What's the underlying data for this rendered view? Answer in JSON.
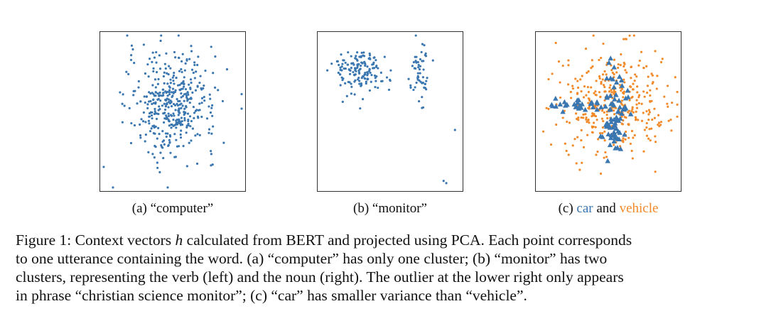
{
  "colors": {
    "blue": "#3a76b0",
    "orange": "#f28a2a"
  },
  "subcaptions": {
    "a": "(a) “computer”",
    "b": "(b) “monitor”",
    "c_prefix": "(c) ",
    "c_word1": "car",
    "c_mid": " and ",
    "c_word2": "vehicle"
  },
  "caption": {
    "line1_pre": "Figure 1: Context vectors ",
    "line1_var": "h",
    "line1_post": " calculated from BERT and projected using PCA. Each point corresponds",
    "line2": "to one utterance containing the word. (a) “computer” has only one cluster; (b) “monitor” has two",
    "line3": "clusters, representing the verb (left) and the noun (right). The outlier at the lower right only appears",
    "line4": "in phrase “christian science monitor”; (c) “car” has smaller variance than “vehicle”."
  },
  "chart_data": [
    {
      "type": "scatter",
      "title": "(a) “computer”",
      "xlabel": "",
      "ylabel": "",
      "xlim": [
        -1,
        1
      ],
      "ylim": [
        -1,
        1
      ],
      "series": [
        {
          "marker": "dot",
          "color": "#3a76b0",
          "clusters": [
            {
              "cx": 0.0,
              "cy": 0.1,
              "sx": 0.33,
              "sy": 0.35,
              "n": 430
            }
          ]
        }
      ]
    },
    {
      "type": "scatter",
      "title": "(b) “monitor”",
      "xlabel": "",
      "ylabel": "",
      "xlim": [
        -1,
        1
      ],
      "ylim": [
        -1,
        1
      ],
      "series": [
        {
          "marker": "dot",
          "color": "#3a76b0",
          "clusters": [
            {
              "cx": -0.45,
              "cy": 0.55,
              "sx": 0.2,
              "sy": 0.16,
              "n": 150
            },
            {
              "cx": 0.45,
              "cy": 0.5,
              "sx": 0.07,
              "sy": 0.2,
              "n": 55
            }
          ],
          "points": [
            [
              0.97,
              -0.25
            ],
            [
              0.8,
              -0.94
            ],
            [
              0.84,
              -0.97
            ]
          ]
        }
      ]
    },
    {
      "type": "scatter",
      "title": "(c) car and vehicle",
      "xlabel": "",
      "ylabel": "",
      "xlim": [
        -1,
        1
      ],
      "ylim": [
        -1,
        1
      ],
      "series": [
        {
          "marker": "dot",
          "color": "#f28a2a",
          "clusters": [
            {
              "cx": 0.05,
              "cy": 0.1,
              "sx": 0.42,
              "sy": 0.34,
              "n": 370
            }
          ],
          "points": [
            [
              0.23,
              0.98
            ],
            [
              0.27,
              0.98
            ]
          ]
        },
        {
          "marker": "triangle",
          "color": "#3a76b0",
          "clusters": [
            {
              "cx": 0.12,
              "cy": 0.0,
              "sx": 0.08,
              "sy": 0.3,
              "n": 75
            },
            {
              "cx": -0.45,
              "cy": 0.08,
              "sx": 0.25,
              "sy": 0.04,
              "n": 30
            }
          ]
        }
      ]
    }
  ]
}
